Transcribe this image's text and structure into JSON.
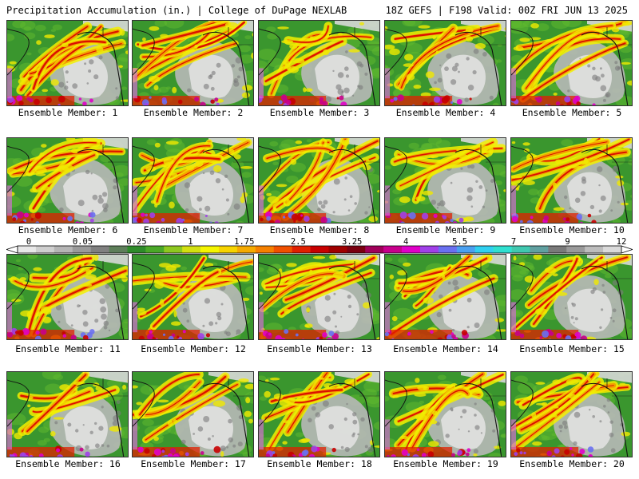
{
  "header": {
    "title": "Precipitation Accumulation (in.) | College of DuPage NEXLAB",
    "run_info": "18Z GEFS | F198 Valid: 00Z FRI JUN 13 2025"
  },
  "members": [
    {
      "label": "Ensemble Member: 1"
    },
    {
      "label": "Ensemble Member: 2"
    },
    {
      "label": "Ensemble Member: 3"
    },
    {
      "label": "Ensemble Member: 4"
    },
    {
      "label": "Ensemble Member: 5"
    },
    {
      "label": "Ensemble Member: 6"
    },
    {
      "label": "Ensemble Member: 7"
    },
    {
      "label": "Ensemble Member: 8"
    },
    {
      "label": "Ensemble Member: 9"
    },
    {
      "label": "Ensemble Member: 10"
    },
    {
      "label": "Ensemble Member: 11"
    },
    {
      "label": "Ensemble Member: 12"
    },
    {
      "label": "Ensemble Member: 13"
    },
    {
      "label": "Ensemble Member: 14"
    },
    {
      "label": "Ensemble Member: 15"
    },
    {
      "label": "Ensemble Member: 16"
    },
    {
      "label": "Ensemble Member: 17"
    },
    {
      "label": "Ensemble Member: 18"
    },
    {
      "label": "Ensemble Member: 19"
    },
    {
      "label": "Ensemble Member: 20"
    }
  ],
  "colorbar": {
    "tick_labels": [
      "0",
      "0.05",
      "0.25",
      "1",
      "1.75",
      "2.5",
      "3.25",
      "4",
      "5.5",
      "7",
      "9",
      "12"
    ],
    "colors": [
      "#e8e8e8",
      "#cfcfcf",
      "#b5b5b5",
      "#9a9a9a",
      "#808080",
      "#5e7f5a",
      "#2e8b2a",
      "#4aa828",
      "#8ec820",
      "#d2e010",
      "#f5f500",
      "#f7d400",
      "#f5aa00",
      "#f58000",
      "#f05000",
      "#e02000",
      "#c80000",
      "#a00000",
      "#7a0010",
      "#a0005a",
      "#c8008c",
      "#e000c8",
      "#a040e8",
      "#6a70f0",
      "#4aa0f0",
      "#30d0f0",
      "#30e0d0",
      "#40c8b0",
      "#60a0a0",
      "#7a7a7a",
      "#9a9a9a",
      "#bdbdbd",
      "#dadada"
    ]
  }
}
